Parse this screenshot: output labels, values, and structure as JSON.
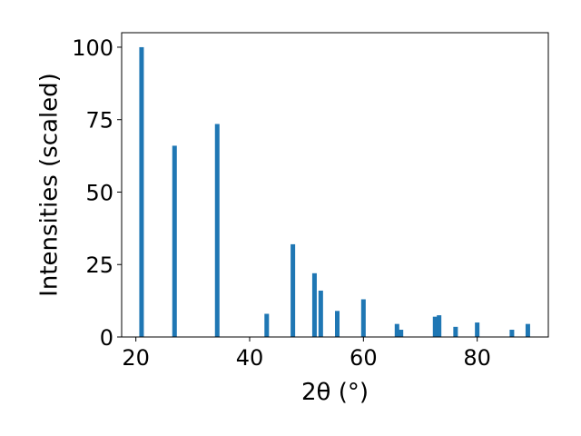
{
  "chart_data": {
    "type": "bar",
    "xlabel": "2θ (°)",
    "ylabel": "Intensities (scaled)",
    "xlim": [
      17.5,
      92.5
    ],
    "ylim": [
      0,
      105
    ],
    "grid": false,
    "bar_color": "#1f77b4",
    "x_ticks": [
      {
        "value": 20,
        "label": "20"
      },
      {
        "value": 40,
        "label": "40"
      },
      {
        "value": 60,
        "label": "60"
      },
      {
        "value": 80,
        "label": "80"
      }
    ],
    "y_ticks": [
      {
        "value": 0,
        "label": "0"
      },
      {
        "value": 25,
        "label": "25"
      },
      {
        "value": 50,
        "label": "50"
      },
      {
        "value": 75,
        "label": "75"
      },
      {
        "value": 100,
        "label": "100"
      }
    ],
    "bar_width": 0.8,
    "points": [
      {
        "x": 21.0,
        "y": 100
      },
      {
        "x": 26.8,
        "y": 66
      },
      {
        "x": 34.3,
        "y": 73.5
      },
      {
        "x": 43.0,
        "y": 8
      },
      {
        "x": 47.6,
        "y": 32
      },
      {
        "x": 51.4,
        "y": 22
      },
      {
        "x": 52.5,
        "y": 16
      },
      {
        "x": 55.4,
        "y": 9
      },
      {
        "x": 60.0,
        "y": 13
      },
      {
        "x": 65.9,
        "y": 4.5
      },
      {
        "x": 66.6,
        "y": 2.5
      },
      {
        "x": 72.6,
        "y": 7
      },
      {
        "x": 73.3,
        "y": 7.5
      },
      {
        "x": 76.2,
        "y": 3.5
      },
      {
        "x": 80.0,
        "y": 5
      },
      {
        "x": 86.1,
        "y": 2.5
      },
      {
        "x": 88.9,
        "y": 4.5
      }
    ]
  }
}
